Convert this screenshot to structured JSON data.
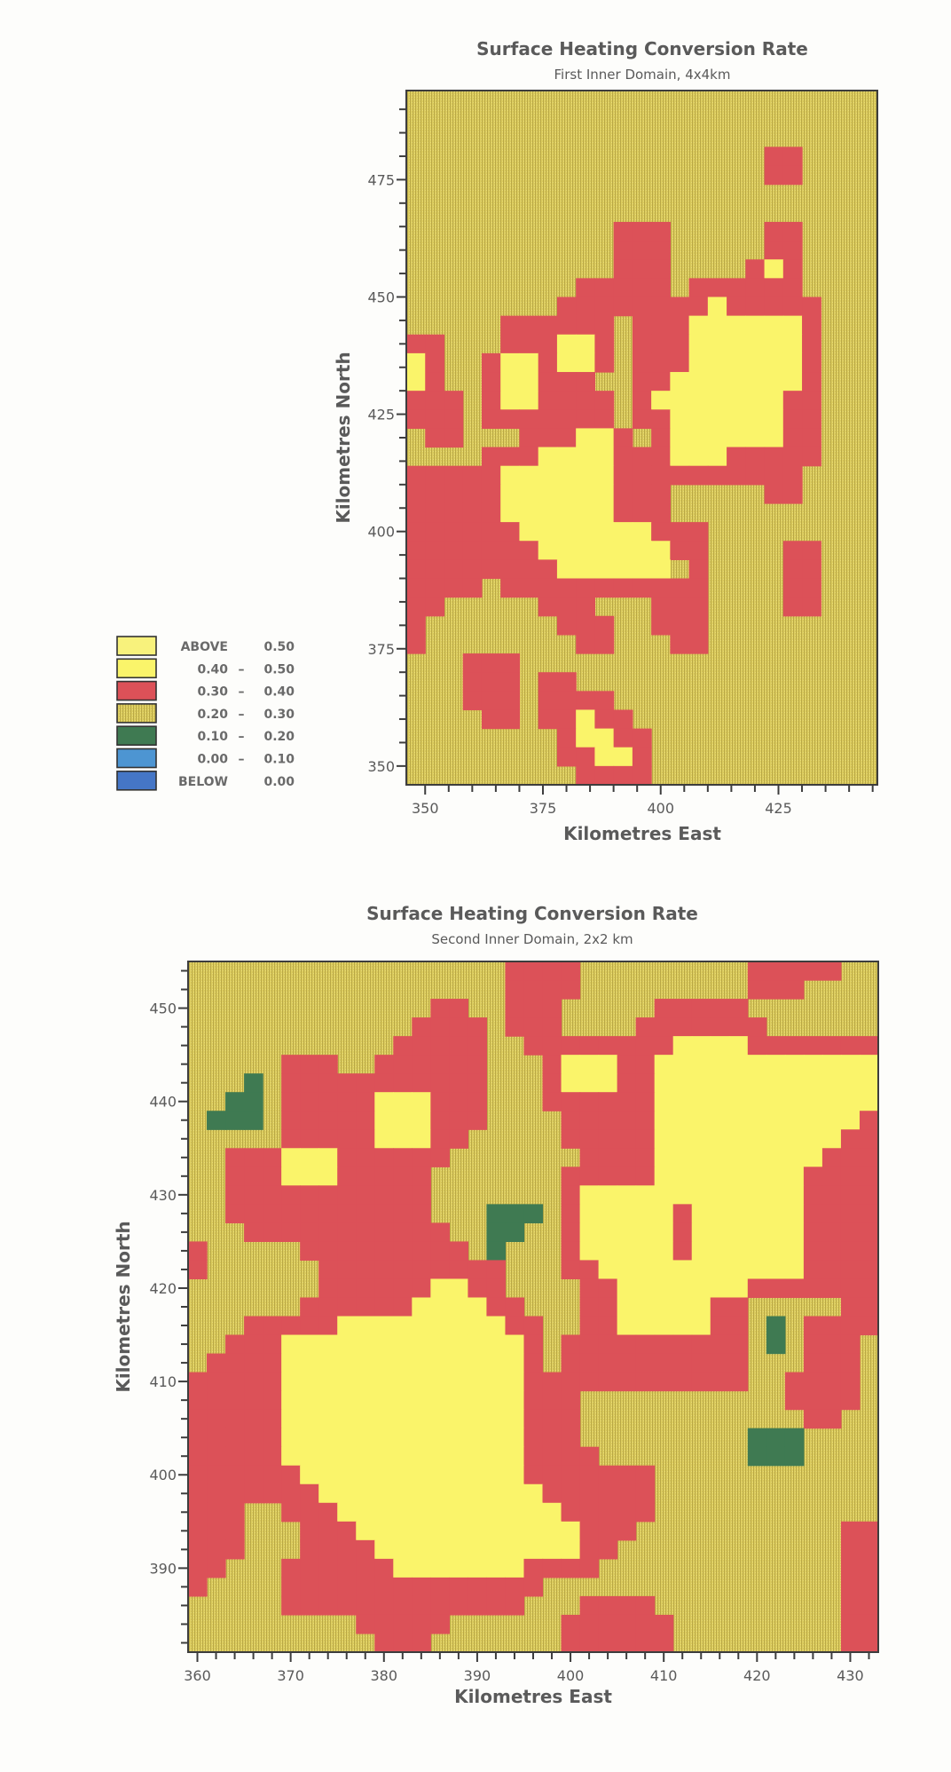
{
  "legend": {
    "items": [
      {
        "low": "ABOVE",
        "high": "0.50",
        "code": "a",
        "color": "#f8f27c"
      },
      {
        "low": "0.40",
        "high": "0.50",
        "code": "y",
        "color": "#faf46a"
      },
      {
        "low": "0.30",
        "high": "0.40",
        "code": "r",
        "color": "#dc5158"
      },
      {
        "low": "0.20",
        "high": "0.30",
        "code": "o",
        "color": "#dbc95c"
      },
      {
        "low": "0.10",
        "high": "0.20",
        "code": "g",
        "color": "#3f7a52"
      },
      {
        "low": "0.00",
        "high": "0.10",
        "code": "c",
        "color": "#4d95d2"
      },
      {
        "low": "BELOW",
        "high": "0.00",
        "code": "b",
        "color": "#4576c6"
      }
    ],
    "range_separator": "–"
  },
  "chart_data": [
    {
      "type": "heatmap",
      "title": "Surface Heating Conversion Rate",
      "subtitle": "First Inner Domain, 4x4km",
      "xlabel": "Kilometres East",
      "ylabel": "Kilometres North",
      "xlim": [
        346,
        446
      ],
      "ylim": [
        346,
        494
      ],
      "cell_size_km": 4,
      "x_ticks": [
        350,
        375,
        400,
        425
      ],
      "y_ticks": [
        350,
        375,
        400,
        425,
        450,
        475
      ],
      "minor_tick_step": 5,
      "grid": false,
      "legend_position": "left",
      "rows_top_to_bottom_rle": [
        "25o",
        "25o",
        "25o",
        "19o2r4o",
        "19o2r4o",
        "25o",
        "25o",
        "11o3r5o2r4o",
        "11o3r5o2r4o",
        "11o3r4o1r1y1r4o",
        "9o5r1o6r4o",
        "8o8r1y5r3o",
        "5o6r1o3r6y1r3o",
        "2r3o3r2y1r1o3r6y1r3o",
        "1y1r2o1r2y1r2y1r1o3r6y1r3o",
        "1y1r2o1r2y3r2o2r7y1r3o",
        "3r1o1r2y4r1o1r7y2r3o",
        "3r1o7r1o2r6y2r3o",
        "1o2r3o3r2y1r1o1r6y2r3o",
        "4o3r4y3r3y5r3o",
        "5r6y10r4o",
        "5r6y3r5o2r4o",
        "5r6y3r11o",
        "6r7y3r9o",
        "7r7y2r4o2r3o",
        "8r6y1o1r4o2r3o",
        "4r1o11r4o2r3o",
        "2r5o3r3o3r4o2r3o",
        "1r7o3r2o3r9o",
        "1r8o2r3o2r9o",
        "3o3r19o",
        "3o3r1o2r16o",
        "3o3r1o4r14o",
        "4o2r1o2r1y2r13o",
        "8o1r2y2r12o",
        "8o2r2y1r12o",
        "9o4r12o"
      ]
    },
    {
      "type": "heatmap",
      "title": "Surface Heating Conversion Rate",
      "subtitle": "Second Inner Domain, 2x2 km",
      "xlabel": "Kilometres East",
      "ylabel": "Kilometres North",
      "xlim": [
        359,
        433
      ],
      "ylim": [
        381,
        455
      ],
      "cell_size_km": 2,
      "x_ticks": [
        360,
        370,
        380,
        390,
        400,
        410,
        420,
        430
      ],
      "y_ticks": [
        390,
        400,
        410,
        420,
        430,
        440,
        450
      ],
      "minor_tick_step": 2,
      "grid": false,
      "rows_top_to_bottom_rle": [
        "17o4r9o5r2o",
        "17o4r9o3r4o",
        "13o2r2o3r5o5r7o",
        "12o4r1o3r4o7r6o",
        "11o5r2o8r4y7r",
        "5o3r2o6r3o1r3y2r12y",
        "3o1g1o11r3o1r3y2r12y",
        "2o2g1o5r3y3r3o6r12y",
        "1o3g1o5r3y3r4o5r11y1r",
        "5o5r3y2r5o5r10y2r",
        "2o3r3y6r7o4r9y3r",
        "2o3r3y5r7o5r8y4r",
        "2o11r7o1r12y4r",
        "2o11r3o3g1o1r5y1r6y4r",
        "3o11r2o2g2o1r5y1r6y4r",
        "1r5o9r1o1g3o1r5y1r6y4r",
        "1r6o10r3o2r11y4r",
        "7o6r2y2r4o2r7y7r",
        "6o6r4y2r3o2r5y2r5o2r",
        "3o5r9y2r2o2r5y2r1o1g1o4r",
        "2o3r13y1r1o10r1o1g1o3r1o",
        "1o4r13y1r1o10r3o3r1o",
        "5r13y12r2o4r1o",
        "5r13y3r11o4r1o",
        "5r13y3r12o2r2o",
        "5r13y3r9o3g4o",
        "5r13y4r8o3g4o",
        "6r12y7r12o",
        "7r12y6r12o",
        "3r2o3r12y5r12o",
        "3r3o3r12y3r11o2r",
        "3r3o4r11y2r12o2r",
        "2r3o6r7y4r13o2r",
        "1r4o14r16o2r",
        "5o13r3o4r10o2r",
        "9o5r6o6r9o2r",
        "10o3r7o6r9o2r"
      ]
    }
  ]
}
